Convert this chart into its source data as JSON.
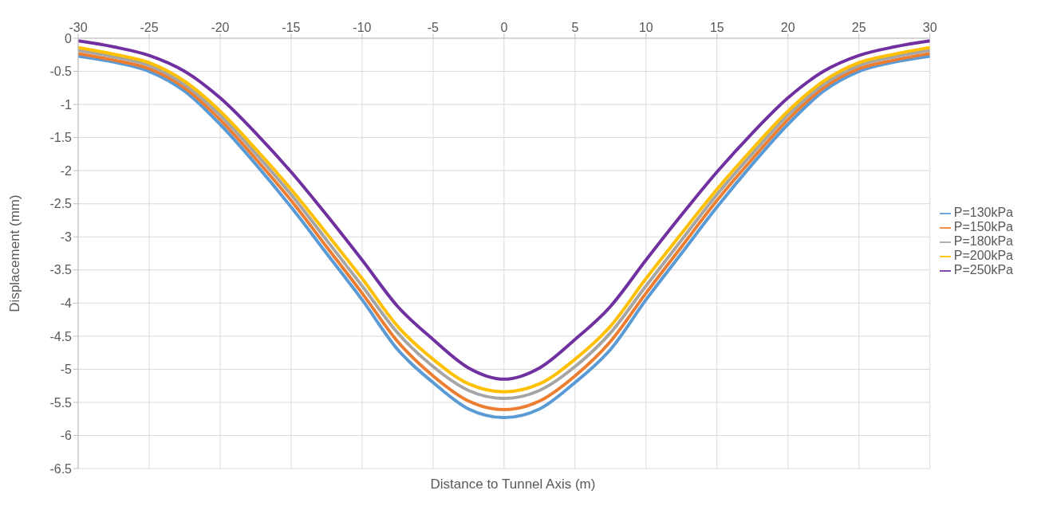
{
  "chart_data": {
    "type": "line",
    "xlabel": "Distance to Tunnel Axis (m)",
    "ylabel": "Displacement (mm)",
    "x": [
      -30,
      -27.5,
      -25,
      -22.5,
      -20,
      -17.5,
      -15,
      -12.5,
      -10,
      -7.5,
      -5,
      -2.5,
      0,
      2.5,
      5,
      7.5,
      10,
      12.5,
      15,
      17.5,
      20,
      22.5,
      25,
      27.5,
      30
    ],
    "series": [
      {
        "name": "P=130kPa",
        "color": "#5b9bd5",
        "values": [
          -0.27,
          -0.36,
          -0.5,
          -0.8,
          -1.3,
          -1.9,
          -2.55,
          -3.25,
          -3.95,
          -4.7,
          -5.2,
          -5.6,
          -5.73,
          -5.6,
          -5.2,
          -4.7,
          -3.95,
          -3.25,
          -2.55,
          -1.9,
          -1.3,
          -0.8,
          -0.5,
          -0.36,
          -0.27
        ]
      },
      {
        "name": "P=150kPa",
        "color": "#ed7d31",
        "values": [
          -0.23,
          -0.33,
          -0.46,
          -0.75,
          -1.23,
          -1.82,
          -2.45,
          -3.15,
          -3.85,
          -4.58,
          -5.1,
          -5.48,
          -5.61,
          -5.48,
          -5.1,
          -4.58,
          -3.85,
          -3.15,
          -2.45,
          -1.82,
          -1.23,
          -0.75,
          -0.46,
          -0.33,
          -0.23
        ]
      },
      {
        "name": "P=180kPa",
        "color": "#a5a5a5",
        "values": [
          -0.18,
          -0.28,
          -0.41,
          -0.7,
          -1.16,
          -1.74,
          -2.36,
          -3.05,
          -3.74,
          -4.45,
          -4.96,
          -5.32,
          -5.44,
          -5.32,
          -4.96,
          -4.45,
          -3.74,
          -3.05,
          -2.36,
          -1.74,
          -1.16,
          -0.7,
          -0.41,
          -0.28,
          -0.18
        ]
      },
      {
        "name": "P=200kPa",
        "color": "#ffc000",
        "values": [
          -0.14,
          -0.24,
          -0.37,
          -0.65,
          -1.1,
          -1.67,
          -2.28,
          -2.95,
          -3.63,
          -4.35,
          -4.85,
          -5.22,
          -5.34,
          -5.22,
          -4.85,
          -4.35,
          -3.63,
          -2.95,
          -2.28,
          -1.67,
          -1.1,
          -0.65,
          -0.37,
          -0.24,
          -0.14
        ]
      },
      {
        "name": "P=250kPa",
        "color": "#7030a0",
        "values": [
          -0.04,
          -0.13,
          -0.26,
          -0.5,
          -0.9,
          -1.43,
          -2.02,
          -2.67,
          -3.35,
          -4.05,
          -4.55,
          -4.98,
          -5.15,
          -4.98,
          -4.55,
          -4.05,
          -3.35,
          -2.67,
          -2.02,
          -1.43,
          -0.9,
          -0.5,
          -0.26,
          -0.13,
          -0.04
        ]
      }
    ],
    "xlim": [
      -30,
      30
    ],
    "xticks": [
      -30,
      -25,
      -20,
      -15,
      -10,
      -5,
      0,
      5,
      10,
      15,
      20,
      25,
      30
    ],
    "ylim": [
      -6.5,
      0
    ],
    "yticks": [
      -6.5,
      -6,
      -5.5,
      -5,
      -4.5,
      -4,
      -3.5,
      -3,
      -2.5,
      -2,
      -1.5,
      -1,
      -0.5,
      0
    ],
    "grid": true,
    "legend": "right",
    "marker": "none",
    "line_style": "solid"
  }
}
